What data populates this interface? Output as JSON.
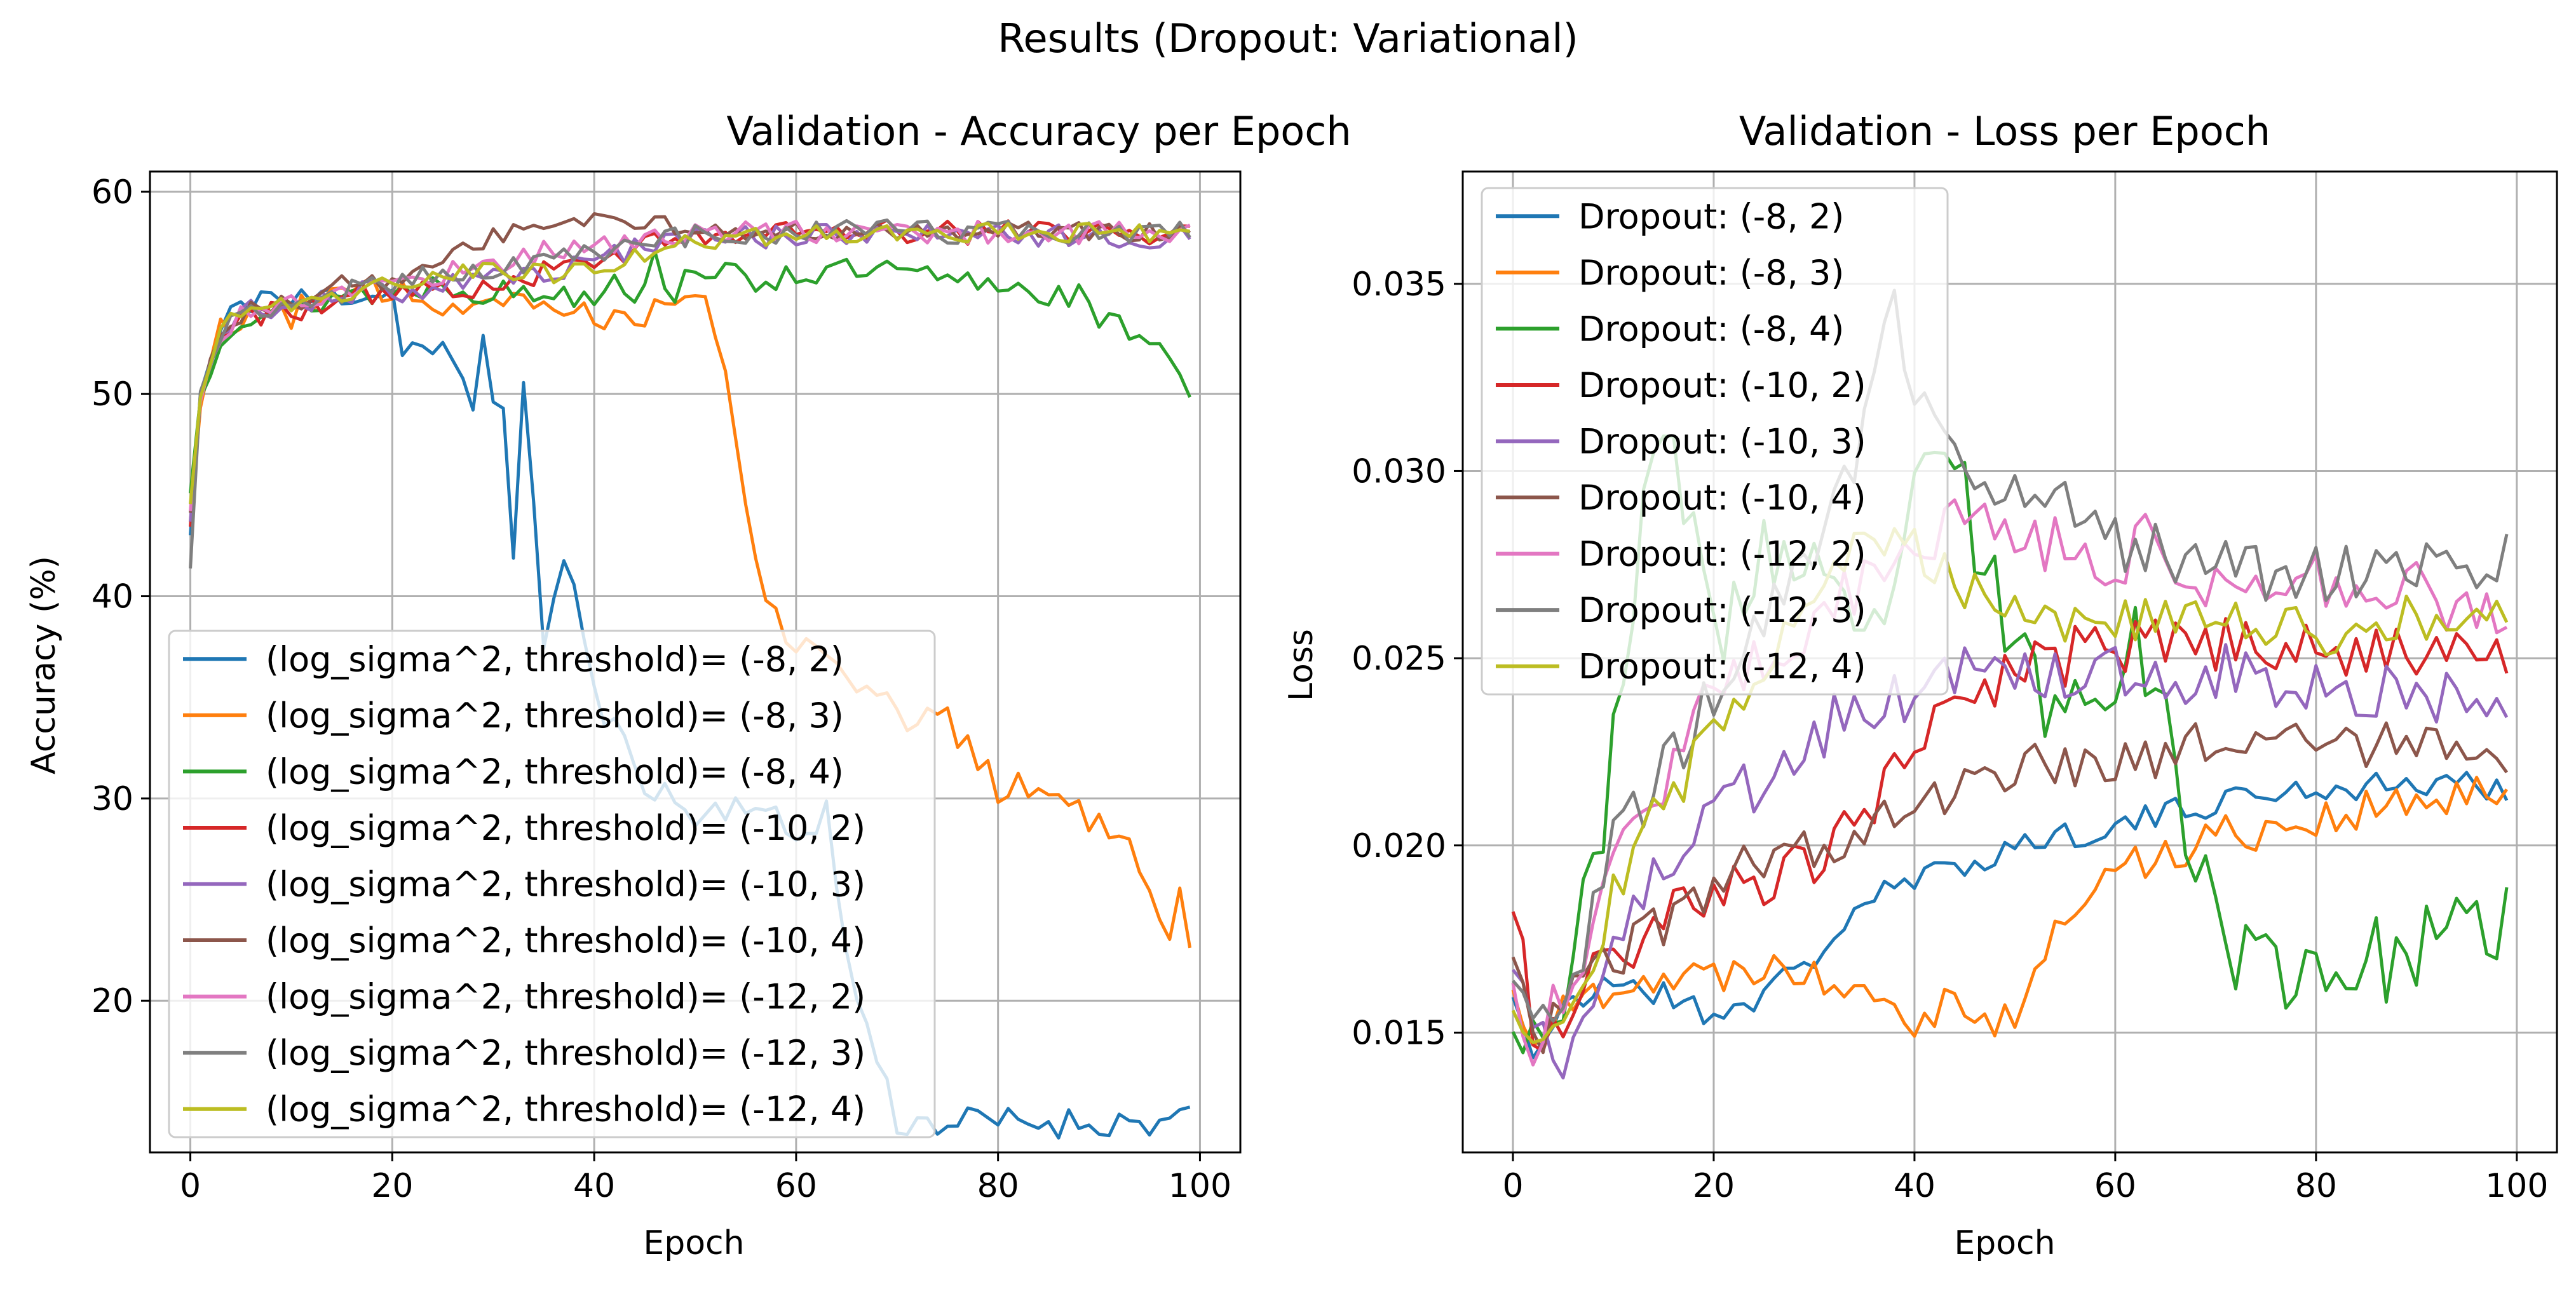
{
  "suptitle": "Results (Dropout: Variational)",
  "chart_data": [
    {
      "type": "line",
      "title": "Validation - Accuracy per Epoch",
      "xlabel": "Epoch",
      "ylabel": "Accuracy (%)",
      "xlim": [
        -4,
        104
      ],
      "ylim": [
        12.5,
        61
      ],
      "xticks": [
        0,
        20,
        40,
        60,
        80,
        100
      ],
      "yticks": [
        20,
        30,
        40,
        50,
        60
      ],
      "grid": true,
      "legend_position": "lower-left",
      "keypoints": [
        {
          "x": [
            0,
            1,
            3,
            5,
            7,
            10,
            15,
            20,
            21,
            25,
            28,
            29,
            30,
            31,
            32,
            33,
            34,
            35,
            36,
            37,
            38,
            40,
            45,
            50,
            55,
            60,
            63,
            65,
            70,
            75,
            80,
            85,
            90,
            95,
            99
          ],
          "y": [
            43,
            50,
            53,
            54.5,
            55,
            54.5,
            55,
            55,
            52.5,
            52,
            49.5,
            52.7,
            50,
            50,
            41.5,
            49.8,
            45,
            38,
            39.5,
            42,
            40.5,
            35,
            31,
            29,
            30,
            28,
            29.5,
            22,
            14,
            14,
            14,
            14,
            14,
            14,
            14
          ]
        },
        {
          "x": [
            0,
            1,
            3,
            5,
            10,
            15,
            20,
            25,
            30,
            35,
            40,
            45,
            48,
            50,
            52,
            54,
            56,
            58,
            60,
            62,
            65,
            70,
            72,
            74,
            76,
            78,
            80,
            83,
            85,
            88,
            90,
            92,
            94,
            96,
            97,
            98,
            99
          ],
          "y": [
            44,
            50,
            53,
            54,
            54,
            55,
            55,
            54.5,
            55,
            54.5,
            54,
            54,
            55,
            55,
            53.5,
            48,
            42,
            39,
            38,
            37.5,
            36.5,
            34,
            33.5,
            34.5,
            33,
            32,
            30.5,
            30.5,
            30.5,
            29.5,
            28.5,
            27.5,
            27,
            24,
            23.5,
            25,
            23
          ]
        },
        {
          "x": [
            0,
            1,
            3,
            5,
            10,
            15,
            20,
            25,
            30,
            35,
            40,
            42,
            44,
            46,
            48,
            50,
            55,
            60,
            65,
            70,
            75,
            80,
            85,
            88,
            90,
            93,
            95,
            97,
            99
          ],
          "y": [
            45,
            50,
            53,
            54,
            54,
            55,
            55,
            55.5,
            55,
            55,
            55,
            56,
            55,
            56.5,
            55,
            56.5,
            55.5,
            56,
            56,
            56,
            55.5,
            55.5,
            55,
            54.8,
            53.5,
            53.2,
            53,
            52,
            50.3
          ]
        },
        {
          "x": [
            0,
            1,
            3,
            5,
            10,
            15,
            20,
            25,
            30,
            35,
            40,
            45,
            50,
            60,
            70,
            80,
            90,
            99
          ],
          "y": [
            43.5,
            50,
            53,
            54,
            54,
            55,
            55,
            55,
            55.5,
            56,
            56.5,
            57.5,
            58,
            58,
            58,
            58,
            58,
            58
          ]
        },
        {
          "x": [
            0,
            1,
            3,
            5,
            10,
            15,
            20,
            25,
            30,
            35,
            40,
            45,
            50,
            60,
            70,
            80,
            90,
            99
          ],
          "y": [
            44,
            50,
            53,
            54,
            54.5,
            55,
            55,
            55.5,
            56,
            56,
            56.5,
            57.5,
            57.8,
            57.8,
            57.8,
            57.8,
            57.8,
            57.8
          ]
        },
        {
          "x": [
            0,
            1,
            3,
            5,
            10,
            15,
            20,
            25,
            28,
            30,
            35,
            40,
            45,
            50,
            60,
            70,
            80,
            90,
            99
          ],
          "y": [
            44,
            50,
            53,
            54,
            54.5,
            55.5,
            55.5,
            56.5,
            57.5,
            57.8,
            58.2,
            58.5,
            58.5,
            58.2,
            58,
            58,
            58,
            58,
            58
          ]
        },
        {
          "x": [
            0,
            1,
            3,
            5,
            10,
            15,
            20,
            25,
            30,
            35,
            40,
            45,
            50,
            60,
            70,
            80,
            90,
            99
          ],
          "y": [
            44,
            50,
            53,
            54,
            54.5,
            55,
            55.5,
            56,
            56.5,
            57,
            57.5,
            57.5,
            58,
            58,
            58,
            58,
            58,
            58
          ]
        },
        {
          "x": [
            0,
            1,
            3,
            5,
            10,
            15,
            20,
            25,
            30,
            35,
            40,
            45,
            50,
            60,
            70,
            80,
            90,
            99
          ],
          "y": [
            41.5,
            50,
            53,
            54,
            54.5,
            55,
            55.5,
            56,
            56,
            56.5,
            57,
            57.5,
            57.8,
            58,
            58,
            58,
            58,
            58
          ]
        },
        {
          "x": [
            0,
            1,
            3,
            5,
            10,
            15,
            20,
            25,
            30,
            35,
            40,
            45,
            50,
            60,
            70,
            80,
            90,
            99
          ],
          "y": [
            45,
            50,
            53,
            54,
            54.5,
            55,
            55.5,
            56,
            56,
            56,
            56,
            57,
            57.5,
            58,
            58,
            58,
            58,
            58
          ]
        }
      ],
      "series": [
        {
          "name": "(log_sigma^2, threshold)= (-8, 2)",
          "color": "#1f77b4",
          "noise": 0.8,
          "seed": 11
        },
        {
          "name": "(log_sigma^2, threshold)= (-8, 3)",
          "color": "#ff7f0e",
          "noise": 0.8,
          "seed": 12
        },
        {
          "name": "(log_sigma^2, threshold)= (-8, 4)",
          "color": "#2ca02c",
          "noise": 0.7,
          "seed": 13
        },
        {
          "name": "(log_sigma^2, threshold)= (-10, 2)",
          "color": "#d62728",
          "noise": 0.6,
          "seed": 14
        },
        {
          "name": "(log_sigma^2, threshold)= (-10, 3)",
          "color": "#9467bd",
          "noise": 0.6,
          "seed": 15
        },
        {
          "name": "(log_sigma^2, threshold)= (-10, 4)",
          "color": "#8c564b",
          "noise": 0.5,
          "seed": 16
        },
        {
          "name": "(log_sigma^2, threshold)= (-12, 2)",
          "color": "#e377c2",
          "noise": 0.6,
          "seed": 17
        },
        {
          "name": "(log_sigma^2, threshold)= (-12, 3)",
          "color": "#7f7f7f",
          "noise": 0.6,
          "seed": 18
        },
        {
          "name": "(log_sigma^2, threshold)= (-12, 4)",
          "color": "#bcbd22",
          "noise": 0.5,
          "seed": 19
        }
      ]
    },
    {
      "type": "line",
      "title": "Validation - Loss per Epoch",
      "xlabel": "Epoch",
      "ylabel": "Loss",
      "xlim": [
        -5,
        104
      ],
      "ylim": [
        0.0118,
        0.038
      ],
      "xticks": [
        0,
        20,
        40,
        60,
        80,
        100
      ],
      "yticks": [
        0.015,
        0.02,
        0.025,
        0.03,
        0.035
      ],
      "ytick_labels": [
        "0.015",
        "0.020",
        "0.025",
        "0.030",
        "0.035"
      ],
      "grid": true,
      "legend_position": "upper-left",
      "keypoints": [
        {
          "x": [
            0,
            2,
            5,
            8,
            10,
            15,
            20,
            25,
            30,
            35,
            40,
            45,
            50,
            55,
            60,
            65,
            70,
            75,
            80,
            85,
            90,
            95,
            99
          ],
          "y": [
            0.016,
            0.0145,
            0.0155,
            0.016,
            0.0165,
            0.016,
            0.0155,
            0.016,
            0.017,
            0.0185,
            0.019,
            0.0195,
            0.02,
            0.0203,
            0.0205,
            0.0208,
            0.0212,
            0.0214,
            0.0215,
            0.0216,
            0.0216,
            0.0216,
            0.0216
          ]
        },
        {
          "x": [
            0,
            2,
            5,
            8,
            10,
            15,
            20,
            25,
            30,
            35,
            40,
            45,
            48,
            50,
            53,
            56,
            60,
            65,
            70,
            75,
            80,
            85,
            90,
            95,
            99
          ],
          "y": [
            0.016,
            0.015,
            0.0155,
            0.016,
            0.0165,
            0.0165,
            0.0165,
            0.017,
            0.0165,
            0.0165,
            0.0155,
            0.016,
            0.0152,
            0.0155,
            0.017,
            0.0185,
            0.0193,
            0.0198,
            0.0203,
            0.0205,
            0.0207,
            0.0209,
            0.0211,
            0.0212,
            0.0213
          ]
        },
        {
          "x": [
            0,
            2,
            5,
            8,
            10,
            12,
            15,
            18,
            20,
            25,
            30,
            35,
            40,
            44,
            46,
            48,
            50,
            55,
            60,
            62,
            65,
            67,
            70,
            72,
            75,
            80,
            85,
            90,
            95,
            99
          ],
          "y": [
            0.016,
            0.015,
            0.016,
            0.019,
            0.023,
            0.027,
            0.031,
            0.029,
            0.025,
            0.028,
            0.027,
            0.025,
            0.029,
            0.0305,
            0.028,
            0.027,
            0.025,
            0.0235,
            0.025,
            0.026,
            0.023,
            0.0205,
            0.0185,
            0.0172,
            0.0168,
            0.0168,
            0.0168,
            0.0172,
            0.0175,
            0.0182
          ]
        },
        {
          "x": [
            0,
            2,
            5,
            8,
            10,
            15,
            20,
            25,
            30,
            35,
            40,
            45,
            50,
            55,
            60,
            65,
            70,
            75,
            80,
            85,
            90,
            95,
            99
          ],
          "y": [
            0.0185,
            0.015,
            0.0155,
            0.0165,
            0.017,
            0.018,
            0.0185,
            0.019,
            0.0195,
            0.021,
            0.0225,
            0.024,
            0.0245,
            0.025,
            0.0253,
            0.0253,
            0.0253,
            0.0253,
            0.0253,
            0.0253,
            0.0253,
            0.0253,
            0.0253
          ]
        },
        {
          "x": [
            0,
            2,
            5,
            8,
            10,
            15,
            20,
            25,
            30,
            35,
            40,
            45,
            50,
            55,
            60,
            65,
            70,
            75,
            80,
            85,
            90,
            95,
            99
          ],
          "y": [
            0.0165,
            0.015,
            0.0145,
            0.016,
            0.018,
            0.0195,
            0.0205,
            0.022,
            0.023,
            0.0235,
            0.024,
            0.0245,
            0.0245,
            0.0248,
            0.0248,
            0.0246,
            0.0245,
            0.0244,
            0.0243,
            0.0242,
            0.0241,
            0.024,
            0.0238
          ]
        },
        {
          "x": [
            0,
            2,
            5,
            8,
            10,
            15,
            20,
            25,
            30,
            35,
            40,
            45,
            50,
            55,
            60,
            65,
            70,
            75,
            80,
            85,
            90,
            95,
            99
          ],
          "y": [
            0.017,
            0.015,
            0.0155,
            0.0165,
            0.017,
            0.018,
            0.019,
            0.0195,
            0.02,
            0.0205,
            0.021,
            0.0215,
            0.022,
            0.0222,
            0.0224,
            0.0225,
            0.0226,
            0.0226,
            0.0226,
            0.0226,
            0.0226,
            0.0226,
            0.0225
          ]
        },
        {
          "x": [
            0,
            2,
            5,
            8,
            10,
            15,
            20,
            25,
            30,
            35,
            40,
            45,
            50,
            55,
            60,
            64,
            65,
            70,
            75,
            80,
            85,
            90,
            95,
            99
          ],
          "y": [
            0.0165,
            0.015,
            0.016,
            0.018,
            0.02,
            0.022,
            0.024,
            0.025,
            0.026,
            0.027,
            0.028,
            0.029,
            0.0285,
            0.028,
            0.0275,
            0.0285,
            0.0278,
            0.027,
            0.027,
            0.0272,
            0.027,
            0.0268,
            0.0265,
            0.026
          ]
        },
        {
          "x": [
            0,
            2,
            5,
            8,
            10,
            15,
            20,
            25,
            30,
            35,
            38,
            40,
            45,
            50,
            55,
            60,
            65,
            70,
            75,
            80,
            85,
            90,
            95,
            99
          ],
          "y": [
            0.0165,
            0.015,
            0.016,
            0.018,
            0.02,
            0.022,
            0.024,
            0.026,
            0.028,
            0.031,
            0.0345,
            0.032,
            0.03,
            0.0295,
            0.029,
            0.028,
            0.0278,
            0.0275,
            0.0272,
            0.0272,
            0.0275,
            0.0273,
            0.0272,
            0.0277
          ]
        },
        {
          "x": [
            0,
            2,
            5,
            8,
            10,
            15,
            20,
            25,
            30,
            35,
            40,
            45,
            50,
            55,
            60,
            65,
            70,
            75,
            80,
            85,
            90,
            95,
            99
          ],
          "y": [
            0.016,
            0.015,
            0.0155,
            0.017,
            0.019,
            0.021,
            0.023,
            0.025,
            0.027,
            0.028,
            0.028,
            0.027,
            0.0265,
            0.026,
            0.026,
            0.026,
            0.026,
            0.0258,
            0.0257,
            0.0258,
            0.026,
            0.0258,
            0.026
          ]
        }
      ],
      "series": [
        {
          "name": "Dropout: (-8, 2)",
          "color": "#1f77b4",
          "noise": 0.0004,
          "seed": 21
        },
        {
          "name": "Dropout: (-8, 3)",
          "color": "#ff7f0e",
          "noise": 0.0006,
          "seed": 22
        },
        {
          "name": "Dropout: (-8, 4)",
          "color": "#2ca02c",
          "noise": 0.0012,
          "seed": 23
        },
        {
          "name": "Dropout: (-10, 2)",
          "color": "#d62728",
          "noise": 0.0008,
          "seed": 24
        },
        {
          "name": "Dropout: (-10, 3)",
          "color": "#9467bd",
          "noise": 0.0009,
          "seed": 25
        },
        {
          "name": "Dropout: (-10, 4)",
          "color": "#8c564b",
          "noise": 0.0007,
          "seed": 26
        },
        {
          "name": "Dropout: (-12, 2)",
          "color": "#e377c2",
          "noise": 0.0009,
          "seed": 27
        },
        {
          "name": "Dropout: (-12, 3)",
          "color": "#7f7f7f",
          "noise": 0.0008,
          "seed": 28
        },
        {
          "name": "Dropout: (-12, 4)",
          "color": "#bcbd22",
          "noise": 0.0007,
          "seed": 29
        }
      ]
    }
  ]
}
